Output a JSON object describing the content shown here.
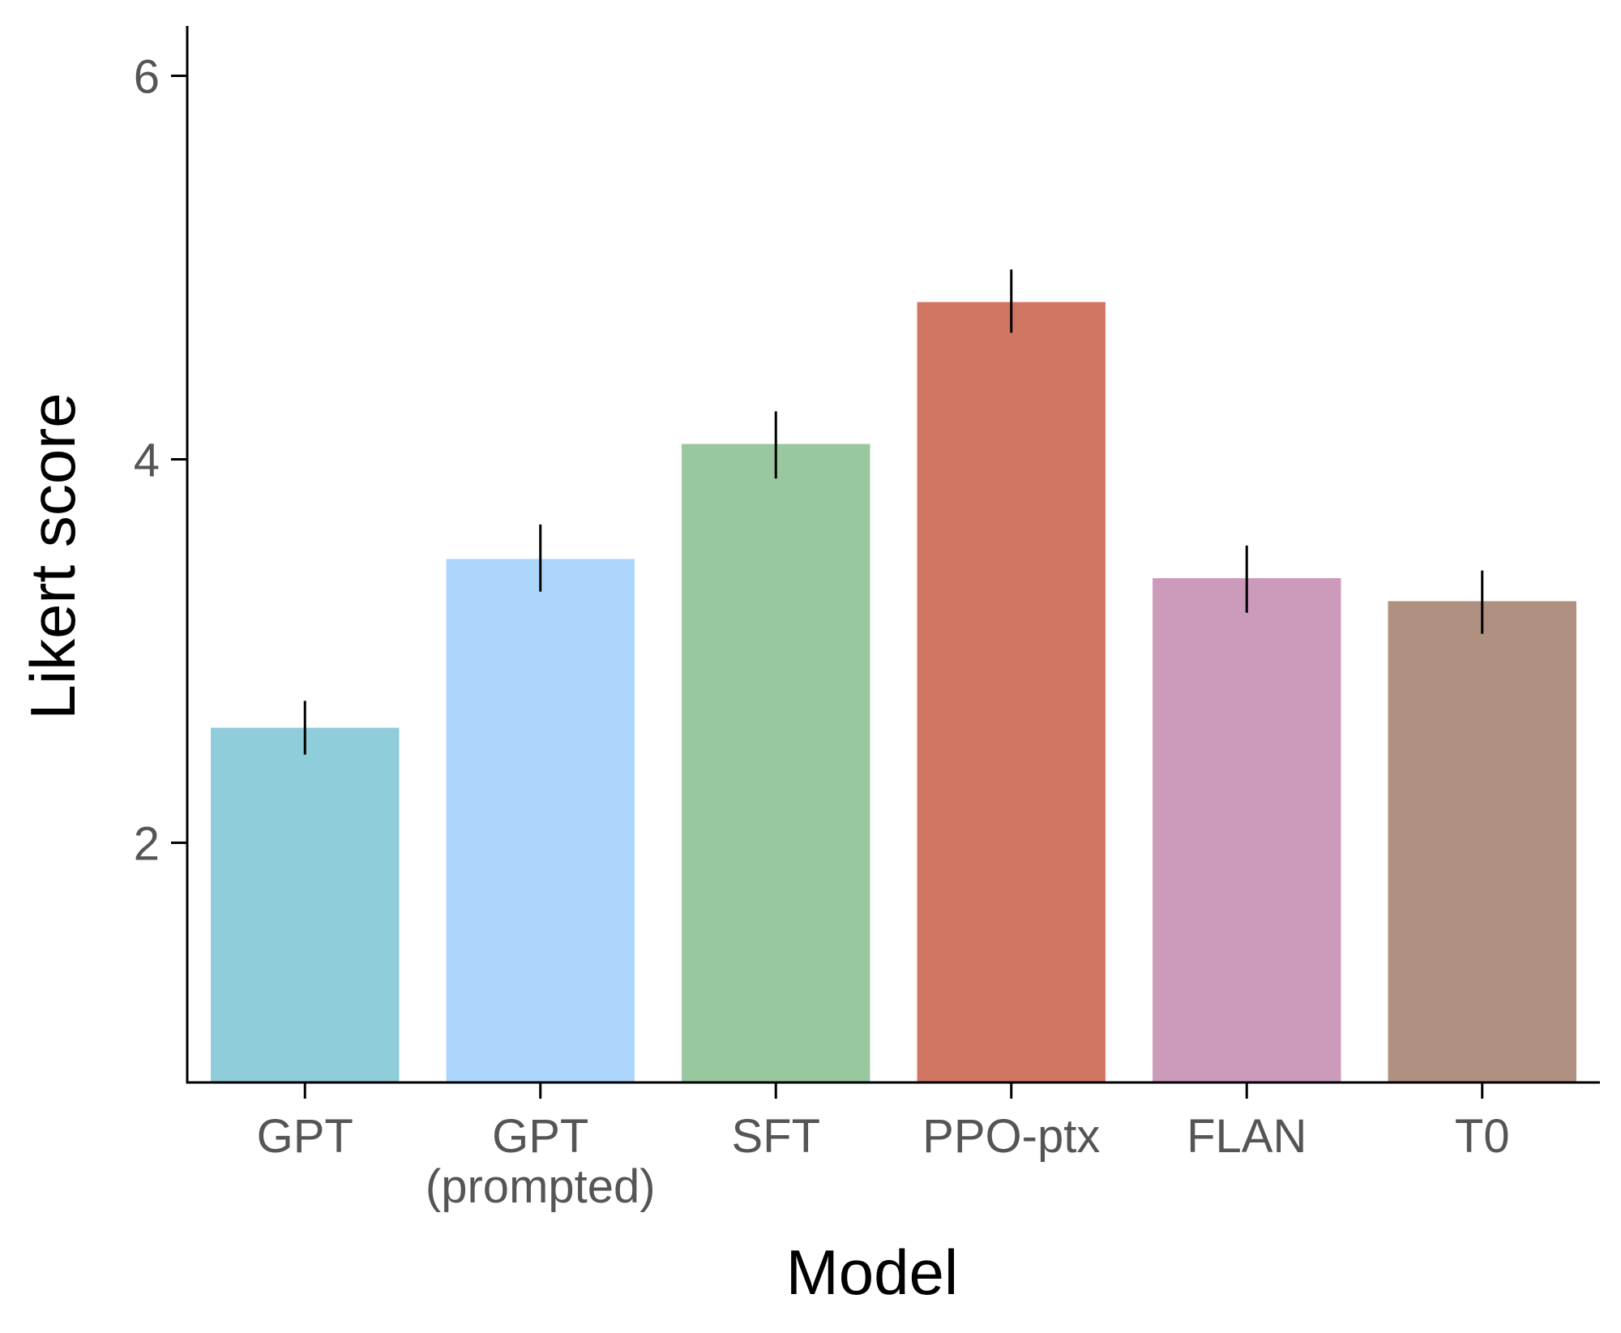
{
  "chart_data": {
    "type": "bar",
    "title": "",
    "xlabel": "Model",
    "ylabel": "Likert score",
    "categories": [
      {
        "line1": "GPT",
        "line2": ""
      },
      {
        "line1": "GPT",
        "line2": "(prompted)"
      },
      {
        "line1": "SFT",
        "line2": ""
      },
      {
        "line1": "PPO-ptx",
        "line2": ""
      },
      {
        "line1": "FLAN",
        "line2": ""
      },
      {
        "line1": "T0",
        "line2": ""
      }
    ],
    "values": [
      2.6,
      3.48,
      4.08,
      4.82,
      3.38,
      3.26
    ],
    "error_low": [
      2.46,
      3.31,
      3.9,
      4.66,
      3.2,
      3.09
    ],
    "error_high": [
      2.74,
      3.66,
      4.25,
      4.99,
      3.55,
      3.42
    ],
    "colors": [
      "#8ECDD9",
      "#ADD6FD",
      "#99C79E",
      "#D27664",
      "#CC9ABB",
      "#B09080"
    ],
    "ylim": [
      0.75,
      6.26
    ],
    "yticks": [
      "2",
      "4",
      "6"
    ],
    "grid": false,
    "legend": "none"
  }
}
